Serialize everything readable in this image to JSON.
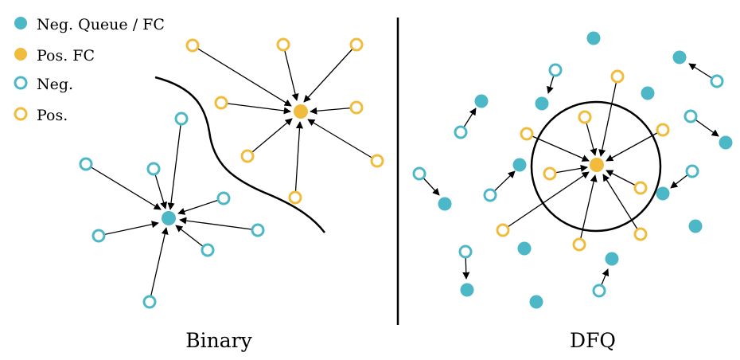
{
  "legend": {
    "items": [
      {
        "label": "Neg. Queue / FC",
        "kind": "neg-queue-fc"
      },
      {
        "label": "Pos. FC",
        "kind": "pos-fc"
      },
      {
        "label": "Neg.",
        "kind": "neg"
      },
      {
        "label": "Pos.",
        "kind": "pos"
      }
    ]
  },
  "panels": {
    "left_title": "Binary",
    "right_title": "DFQ"
  },
  "colors": {
    "teal": "#4cb7c6",
    "gold": "#f1bb3d",
    "line": "#000000"
  }
}
